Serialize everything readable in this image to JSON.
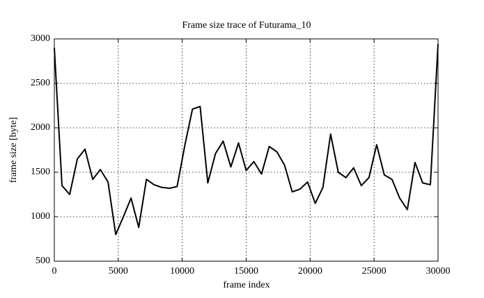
{
  "chart_data": {
    "type": "line",
    "title": "Frame size trace of Futurama_10",
    "x_label": "frame index",
    "y_label": "frame size [byte]",
    "x": [
      0,
      600,
      1200,
      1800,
      2400,
      3000,
      3600,
      4200,
      4800,
      5400,
      6000,
      6600,
      7200,
      7800,
      8400,
      9000,
      9600,
      10200,
      10800,
      11400,
      12000,
      12600,
      13200,
      13800,
      14400,
      15000,
      15600,
      16200,
      16800,
      17400,
      18000,
      18600,
      19200,
      19800,
      20400,
      21000,
      21600,
      22200,
      22800,
      23400,
      24000,
      24600,
      25200,
      25800,
      26400,
      27000,
      27600,
      28200,
      28800,
      29400,
      30000
    ],
    "series": [
      {
        "name": "Futurama_10",
        "color": "#000000",
        "values": [
          2900,
          1350,
          1250,
          1650,
          1760,
          1420,
          1530,
          1390,
          800,
          1000,
          1210,
          880,
          1420,
          1360,
          1330,
          1320,
          1340,
          1800,
          2210,
          2240,
          1380,
          1710,
          1850,
          1560,
          1830,
          1520,
          1620,
          1480,
          1790,
          1730,
          1580,
          1280,
          1310,
          1390,
          1150,
          1330,
          1930,
          1500,
          1440,
          1550,
          1350,
          1440,
          1810,
          1470,
          1420,
          1210,
          1080,
          1610,
          1380,
          1360,
          2940
        ]
      }
    ],
    "xlim": [
      0,
      30000
    ],
    "xticks": [
      0,
      5000,
      10000,
      15000,
      20000,
      25000,
      30000
    ],
    "ylim": [
      500,
      3000
    ],
    "yticks": [
      500,
      1000,
      1500,
      2000,
      2500,
      3000
    ],
    "grid": true
  }
}
